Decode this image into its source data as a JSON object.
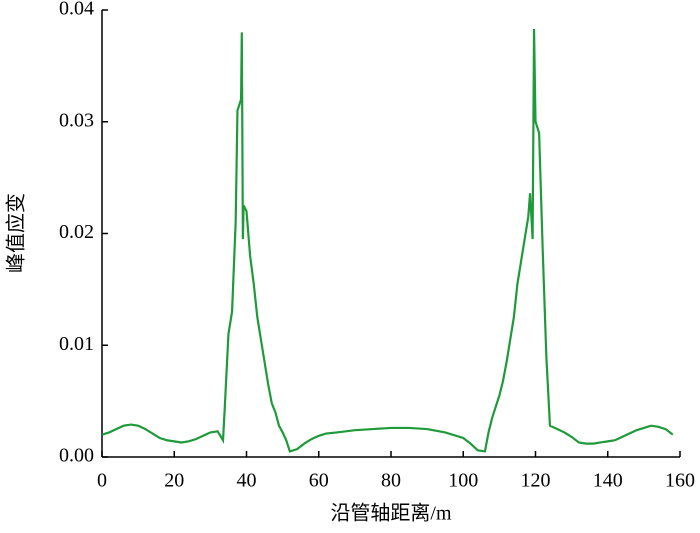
{
  "chart_data": {
    "type": "line",
    "x_label": "沿管轴距离/m",
    "y_label": "峰值应变",
    "color": "#1f9a3a",
    "x": [
      0,
      2,
      4,
      6,
      8,
      10,
      12,
      14,
      16,
      18,
      20,
      22,
      24,
      26,
      28,
      30,
      32,
      33.5,
      34,
      35,
      36,
      37,
      37.5,
      38.5,
      38.7,
      39,
      39.2,
      40,
      41,
      42,
      43,
      44,
      45,
      46,
      47,
      48,
      49,
      50,
      51,
      52,
      54,
      56,
      58,
      60,
      62,
      65,
      70,
      75,
      80,
      85,
      90,
      95,
      100,
      102,
      104,
      106,
      107,
      108,
      109,
      110,
      111,
      112,
      113,
      114,
      115,
      116,
      117,
      118,
      118.5,
      119.2,
      119.6,
      120,
      121,
      122,
      123,
      124,
      126,
      128,
      130,
      132,
      134,
      136,
      138,
      140,
      142,
      144,
      146,
      148,
      150,
      152,
      154,
      156,
      158
    ],
    "values": [
      0.002,
      0.0022,
      0.0025,
      0.0028,
      0.0029,
      0.0028,
      0.0025,
      0.0021,
      0.0017,
      0.0015,
      0.0014,
      0.0013,
      0.0014,
      0.0016,
      0.0019,
      0.0022,
      0.0023,
      0.0015,
      0.0045,
      0.011,
      0.013,
      0.021,
      0.031,
      0.032,
      0.038,
      0.0195,
      0.0225,
      0.022,
      0.018,
      0.0155,
      0.0125,
      0.0105,
      0.0085,
      0.0065,
      0.0048,
      0.004,
      0.0028,
      0.0022,
      0.0015,
      0.0005,
      0.0007,
      0.0012,
      0.0016,
      0.0019,
      0.0021,
      0.0022,
      0.0024,
      0.0025,
      0.0026,
      0.0026,
      0.0025,
      0.0022,
      0.0017,
      0.0012,
      0.0006,
      0.0005,
      0.0022,
      0.0035,
      0.0045,
      0.0055,
      0.0068,
      0.0085,
      0.0105,
      0.0125,
      0.0155,
      0.0175,
      0.0195,
      0.0215,
      0.0236,
      0.0195,
      0.0383,
      0.03,
      0.029,
      0.0185,
      0.009,
      0.0028,
      0.0025,
      0.0022,
      0.0018,
      0.0013,
      0.0012,
      0.0012,
      0.0013,
      0.0014,
      0.0015,
      0.0018,
      0.0021,
      0.0024,
      0.0026,
      0.0028,
      0.0027,
      0.0025,
      0.002
    ],
    "xlim": [
      0,
      160
    ],
    "xticks": [
      0,
      20,
      40,
      60,
      80,
      100,
      120,
      140,
      160
    ],
    "ylim": [
      0,
      0.04
    ],
    "yticks": [
      {
        "value": 0,
        "label": "0.00"
      },
      0.01,
      0.02,
      0.03,
      0.04
    ]
  }
}
